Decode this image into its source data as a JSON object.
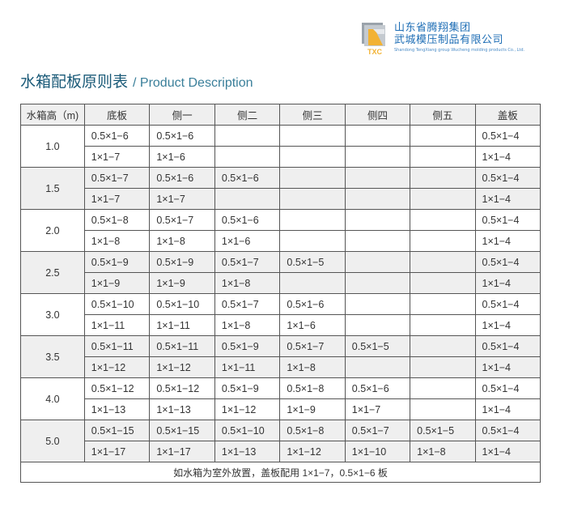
{
  "logo": {
    "icon": "txc-logo-icon",
    "mark": "TXC",
    "cn_line1": "山东省腾翔集团",
    "cn_line2": "武城模压制品有限公司",
    "en": "Shandong TengXiang group Wucheng molding products Co., Ltd."
  },
  "title": {
    "cn": "水箱配板原则表",
    "en": "/ Product Description"
  },
  "table": {
    "headers": [
      "水箱高（m)",
      "底板",
      "侧一",
      "侧二",
      "侧三",
      "侧四",
      "侧五",
      "盖板"
    ],
    "groups": [
      {
        "height": "1.0",
        "rows": [
          [
            "0.5×1−6",
            "0.5×1−6",
            "",
            "",
            "",
            "",
            "0.5×1−4"
          ],
          [
            "1×1−7",
            "1×1−6",
            "",
            "",
            "",
            "",
            "1×1−4"
          ]
        ]
      },
      {
        "height": "1.5",
        "rows": [
          [
            "0.5×1−7",
            "0.5×1−6",
            "0.5×1−6",
            "",
            "",
            "",
            "0.5×1−4"
          ],
          [
            "1×1−7",
            "1×1−7",
            "",
            "",
            "",
            "",
            "1×1−4"
          ]
        ]
      },
      {
        "height": "2.0",
        "rows": [
          [
            "0.5×1−8",
            "0.5×1−7",
            "0.5×1−6",
            "",
            "",
            "",
            "0.5×1−4"
          ],
          [
            "1×1−8",
            "1×1−8",
            "1×1−6",
            "",
            "",
            "",
            "1×1−4"
          ]
        ]
      },
      {
        "height": "2.5",
        "rows": [
          [
            "0.5×1−9",
            "0.5×1−9",
            "0.5×1−7",
            "0.5×1−5",
            "",
            "",
            "0.5×1−4"
          ],
          [
            "1×1−9",
            "1×1−9",
            "1×1−8",
            "",
            "",
            "",
            "1×1−4"
          ]
        ]
      },
      {
        "height": "3.0",
        "rows": [
          [
            "0.5×1−10",
            "0.5×1−10",
            "0.5×1−7",
            "0.5×1−6",
            "",
            "",
            "0.5×1−4"
          ],
          [
            "1×1−11",
            "1×1−11",
            "1×1−8",
            "1×1−6",
            "",
            "",
            "1×1−4"
          ]
        ]
      },
      {
        "height": "3.5",
        "rows": [
          [
            "0.5×1−11",
            "0.5×1−11",
            "0.5×1−9",
            "0.5×1−7",
            "0.5×1−5",
            "",
            "0.5×1−4"
          ],
          [
            "1×1−12",
            "1×1−12",
            "1×1−11",
            "1×1−8",
            "",
            "",
            "1×1−4"
          ]
        ]
      },
      {
        "height": "4.0",
        "rows": [
          [
            "0.5×1−12",
            "0.5×1−12",
            "0.5×1−9",
            "0.5×1−8",
            "0.5×1−6",
            "",
            "0.5×1−4"
          ],
          [
            "1×1−13",
            "1×1−13",
            "1×1−12",
            "1×1−9",
            "1×1−7",
            "",
            "1×1−4"
          ]
        ]
      },
      {
        "height": "5.0",
        "rows": [
          [
            "0.5×1−15",
            "0.5×1−15",
            "0.5×1−10",
            "0.5×1−8",
            "0.5×1−7",
            "0.5×1−5",
            "0.5×1−4"
          ],
          [
            "1×1−17",
            "1×1−17",
            "1×1−13",
            "1×1−12",
            "1×1−10",
            "1×1−8",
            "1×1−4"
          ]
        ]
      }
    ],
    "note": "如水箱为室外放置，盖板配用 1×1−7，0.5×1−6 板"
  },
  "colors": {
    "title": "#1a5a78",
    "logo_text": "#1d6db5",
    "alt_row": "#efefef"
  }
}
